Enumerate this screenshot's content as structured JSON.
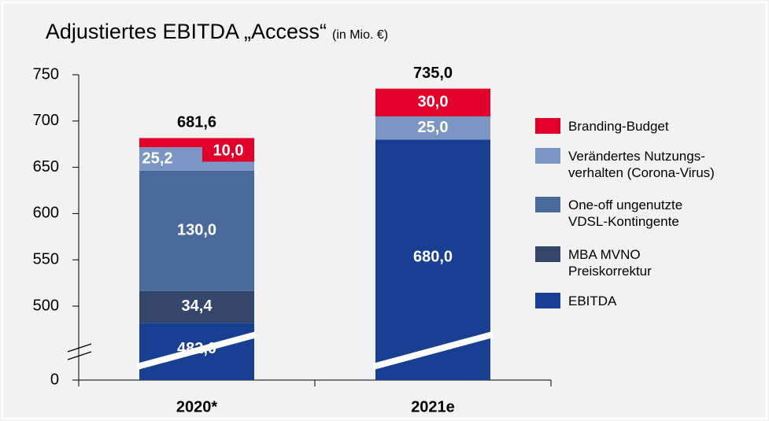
{
  "chart_data": {
    "type": "stacked_bar",
    "title": "Adjustiertes EBITDA „Access“",
    "subtitle": "(in Mio. €)",
    "categories": [
      "2020*",
      "2021e"
    ],
    "series": [
      {
        "name": "EBITDA",
        "color": "#193f93",
        "values": [
          482.0,
          680.0
        ],
        "value_labels": [
          "482,0",
          "680,0"
        ]
      },
      {
        "name": "MBA MVNO\nPreiskorrektur",
        "color": "#34476b",
        "values": [
          34.4,
          null
        ],
        "value_labels": [
          "34,4",
          null
        ]
      },
      {
        "name": "One-off ungenutzte\nVDSL-Kontingente",
        "color": "#4a6a9c",
        "values": [
          130.0,
          null
        ],
        "value_labels": [
          "130,0",
          null
        ]
      },
      {
        "name": "Verändertes Nutzungs-\nverhalten (Corona-Virus)",
        "color": "#7b96c4",
        "values": [
          25.2,
          25.0
        ],
        "value_labels": [
          "25,2",
          "25,0"
        ]
      },
      {
        "name": "Branding-Budget",
        "color": "#e2002a",
        "values": [
          10.0,
          30.0
        ],
        "value_labels": [
          "10,0",
          "30,0"
        ]
      }
    ],
    "totals": [
      681.6,
      735.0
    ],
    "total_labels": [
      "681,6",
      "735,0"
    ],
    "ylim": [
      0,
      750
    ],
    "yticks": [
      0,
      500,
      550,
      600,
      650,
      700,
      750
    ],
    "axis_break": true
  }
}
